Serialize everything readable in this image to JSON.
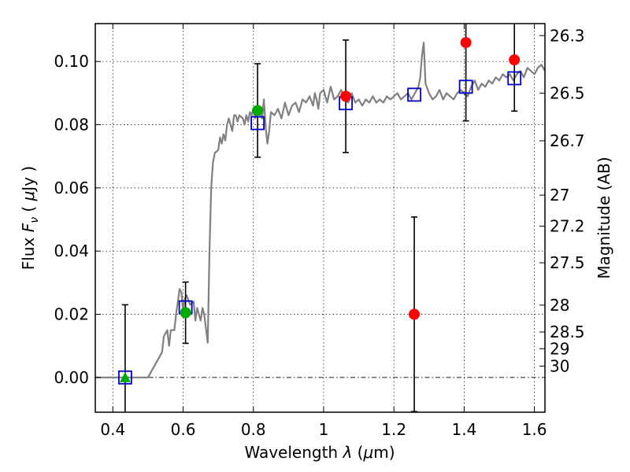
{
  "chart_data": {
    "type": "scatter",
    "xlabel": "Wavelength  λ (μm)",
    "ylabel": "Flux  F_ν  ( μJy )",
    "ylabel_parts": {
      "pre": "Flux  ",
      "symbol": "F",
      "sub": "ν",
      "post": "  ( ",
      "mu": "μ",
      "unit": "Jy )"
    },
    "xlabel_parts": {
      "pre": "Wavelength  ",
      "lambda": "λ",
      "open": " (",
      "mu": "μ",
      "unit": "m)"
    },
    "y2label": "Magnitude (AB)",
    "xlim": [
      0.35,
      1.63
    ],
    "ylim": [
      -0.011,
      0.112
    ],
    "grid": true,
    "x_ticks": [
      0.4,
      0.6,
      0.8,
      1.0,
      1.2,
      1.4,
      1.6
    ],
    "x_tick_labels": [
      "0.4",
      "0.6",
      "0.8",
      "1",
      "1.2",
      "1.4",
      "1.6"
    ],
    "y_ticks": [
      0.0,
      0.02,
      0.04,
      0.06,
      0.08,
      0.1
    ],
    "y_tick_labels": [
      "0.00",
      "0.02",
      "0.04",
      "0.06",
      "0.08",
      "0.10"
    ],
    "y2_ticks": [
      {
        "label": "26.3",
        "flux": 0.1082
      },
      {
        "label": "26.5",
        "flux": 0.09
      },
      {
        "label": "26.7",
        "flux": 0.0749
      },
      {
        "label": "27",
        "flux": 0.0577
      },
      {
        "label": "27.2",
        "flux": 0.0479
      },
      {
        "label": "27.5",
        "flux": 0.0363
      },
      {
        "label": "28",
        "flux": 0.0229
      },
      {
        "label": "28.5",
        "flux": 0.0144
      },
      {
        "label": "29",
        "flux": 0.0091
      },
      {
        "label": "30",
        "flux": 0.0036
      }
    ],
    "zero_line": {
      "y": 0.0
    },
    "series": [
      {
        "kind": "line",
        "color": "#808080",
        "points": [
          [
            0.35,
            0.0
          ],
          [
            0.5,
            0.0
          ],
          [
            0.52,
            0.004
          ],
          [
            0.54,
            0.008
          ],
          [
            0.545,
            0.013
          ],
          [
            0.555,
            0.015
          ],
          [
            0.56,
            0.01
          ],
          [
            0.565,
            0.015
          ],
          [
            0.575,
            0.015
          ],
          [
            0.58,
            0.02
          ],
          [
            0.59,
            0.028
          ],
          [
            0.595,
            0.027
          ],
          [
            0.6,
            0.021
          ],
          [
            0.605,
            0.025
          ],
          [
            0.61,
            0.026
          ],
          [
            0.62,
            0.023
          ],
          [
            0.63,
            0.024
          ],
          [
            0.635,
            0.018
          ],
          [
            0.64,
            0.022
          ],
          [
            0.65,
            0.018
          ],
          [
            0.655,
            0.022
          ],
          [
            0.66,
            0.02
          ],
          [
            0.67,
            0.011
          ],
          [
            0.675,
            0.04
          ],
          [
            0.68,
            0.06
          ],
          [
            0.685,
            0.068
          ],
          [
            0.69,
            0.071
          ],
          [
            0.7,
            0.072
          ],
          [
            0.705,
            0.076
          ],
          [
            0.71,
            0.074
          ],
          [
            0.715,
            0.077
          ],
          [
            0.72,
            0.075
          ],
          [
            0.725,
            0.08
          ],
          [
            0.73,
            0.082
          ],
          [
            0.74,
            0.078
          ],
          [
            0.745,
            0.083
          ],
          [
            0.75,
            0.083
          ],
          [
            0.755,
            0.081
          ],
          [
            0.76,
            0.083
          ],
          [
            0.77,
            0.082
          ],
          [
            0.775,
            0.08
          ],
          [
            0.78,
            0.083
          ],
          [
            0.785,
            0.081
          ],
          [
            0.79,
            0.084
          ],
          [
            0.795,
            0.083
          ],
          [
            0.8,
            0.085
          ],
          [
            0.805,
            0.082
          ],
          [
            0.81,
            0.084
          ],
          [
            0.815,
            0.085
          ],
          [
            0.82,
            0.083
          ],
          [
            0.825,
            0.082
          ],
          [
            0.83,
            0.088
          ],
          [
            0.835,
            0.079
          ],
          [
            0.84,
            0.074
          ],
          [
            0.845,
            0.078
          ],
          [
            0.85,
            0.084
          ],
          [
            0.86,
            0.083
          ],
          [
            0.87,
            0.085
          ],
          [
            0.88,
            0.082
          ],
          [
            0.89,
            0.087
          ],
          [
            0.9,
            0.083
          ],
          [
            0.91,
            0.086
          ],
          [
            0.92,
            0.087
          ],
          [
            0.93,
            0.084
          ],
          [
            0.94,
            0.088
          ],
          [
            0.95,
            0.087
          ],
          [
            0.96,
            0.089
          ],
          [
            0.97,
            0.086
          ],
          [
            0.975,
            0.09
          ],
          [
            0.98,
            0.088
          ],
          [
            0.985,
            0.085
          ],
          [
            0.99,
            0.09
          ],
          [
            1.0,
            0.091
          ],
          [
            1.01,
            0.087
          ],
          [
            1.02,
            0.092
          ],
          [
            1.03,
            0.088
          ],
          [
            1.04,
            0.089
          ],
          [
            1.05,
            0.091
          ],
          [
            1.06,
            0.088
          ],
          [
            1.07,
            0.087
          ],
          [
            1.08,
            0.09
          ],
          [
            1.09,
            0.087
          ],
          [
            1.1,
            0.088
          ],
          [
            1.11,
            0.086
          ],
          [
            1.12,
            0.088
          ],
          [
            1.13,
            0.087
          ],
          [
            1.14,
            0.089
          ],
          [
            1.15,
            0.087
          ],
          [
            1.16,
            0.088
          ],
          [
            1.17,
            0.087
          ],
          [
            1.18,
            0.089
          ],
          [
            1.19,
            0.088
          ],
          [
            1.2,
            0.089
          ],
          [
            1.21,
            0.09
          ],
          [
            1.22,
            0.088
          ],
          [
            1.23,
            0.089
          ],
          [
            1.24,
            0.09
          ],
          [
            1.25,
            0.088
          ],
          [
            1.26,
            0.09
          ],
          [
            1.27,
            0.092
          ],
          [
            1.275,
            0.095
          ],
          [
            1.28,
            0.102
          ],
          [
            1.285,
            0.106
          ],
          [
            1.29,
            0.093
          ],
          [
            1.3,
            0.09
          ],
          [
            1.31,
            0.088
          ],
          [
            1.32,
            0.089
          ],
          [
            1.33,
            0.091
          ],
          [
            1.34,
            0.088
          ],
          [
            1.35,
            0.09
          ],
          [
            1.36,
            0.089
          ],
          [
            1.37,
            0.088
          ],
          [
            1.38,
            0.09
          ],
          [
            1.39,
            0.091
          ],
          [
            1.4,
            0.09
          ],
          [
            1.41,
            0.089
          ],
          [
            1.42,
            0.092
          ],
          [
            1.43,
            0.094
          ],
          [
            1.44,
            0.091
          ],
          [
            1.45,
            0.093
          ],
          [
            1.46,
            0.092
          ],
          [
            1.47,
            0.094
          ],
          [
            1.48,
            0.093
          ],
          [
            1.49,
            0.095
          ],
          [
            1.5,
            0.094
          ],
          [
            1.51,
            0.096
          ],
          [
            1.52,
            0.095
          ],
          [
            1.53,
            0.096
          ],
          [
            1.54,
            0.094
          ],
          [
            1.55,
            0.096
          ],
          [
            1.56,
            0.097
          ],
          [
            1.57,
            0.095
          ],
          [
            1.58,
            0.098
          ],
          [
            1.59,
            0.097
          ],
          [
            1.6,
            0.096
          ],
          [
            1.61,
            0.098
          ],
          [
            1.62,
            0.099
          ],
          [
            1.63,
            0.097
          ]
        ]
      },
      {
        "kind": "model_boxes",
        "marker": "square",
        "color": "#0000cc",
        "points": [
          {
            "x": 0.435,
            "y": 0.0
          },
          {
            "x": 0.607,
            "y": 0.0222
          },
          {
            "x": 0.812,
            "y": 0.0805
          },
          {
            "x": 1.063,
            "y": 0.0868
          },
          {
            "x": 1.258,
            "y": 0.0895
          },
          {
            "x": 1.405,
            "y": 0.092
          },
          {
            "x": 1.543,
            "y": 0.0947
          }
        ]
      },
      {
        "kind": "detections",
        "marker": "circle",
        "color": "#00aa00",
        "points": [
          {
            "x": 0.607,
            "y": 0.0205,
            "err": 0.0097
          },
          {
            "x": 0.812,
            "y": 0.0845,
            "err": 0.0148
          }
        ]
      },
      {
        "kind": "upper_limit",
        "marker": "triangle",
        "color": "#00aa00",
        "points": [
          {
            "x": 0.435,
            "y": 0.0,
            "err": 0.023
          }
        ]
      },
      {
        "kind": "detections",
        "marker": "circle",
        "color": "#ff0000",
        "points": [
          {
            "x": 1.063,
            "y": 0.089,
            "err": 0.0178
          },
          {
            "x": 1.258,
            "y": 0.02,
            "err": 0.0308
          },
          {
            "x": 1.405,
            "y": 0.106,
            "err": 0.0248
          },
          {
            "x": 1.543,
            "y": 0.1005,
            "err": 0.0162
          }
        ]
      }
    ]
  }
}
